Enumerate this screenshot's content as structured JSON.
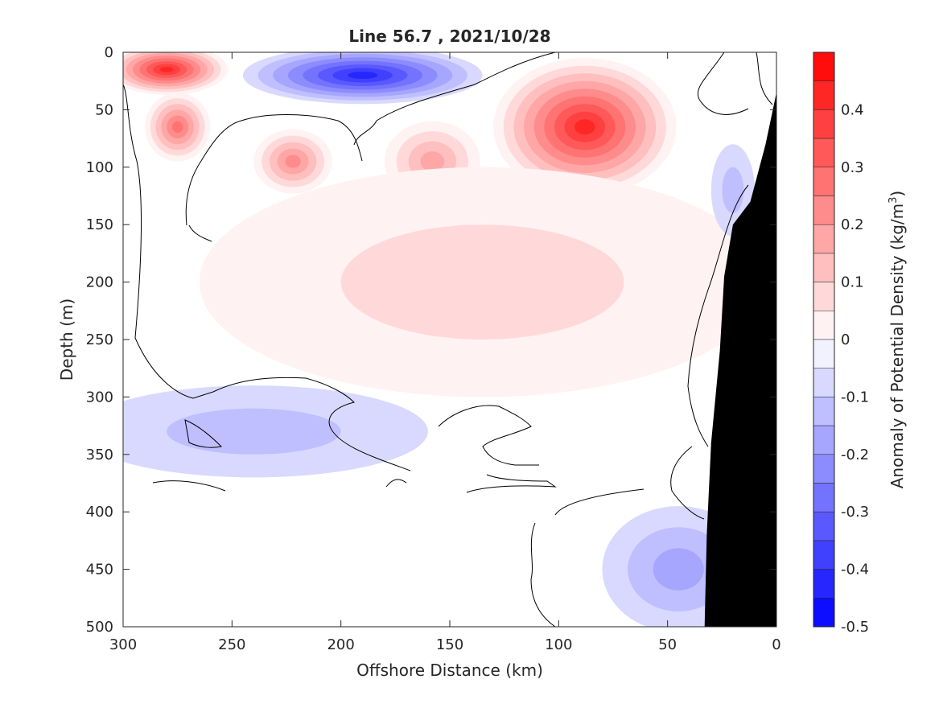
{
  "chart_data": {
    "type": "heatmap",
    "title": "Line 56.7 , 2021/10/28",
    "xlabel": "Offshore Distance (km)",
    "ylabel": "Depth (m)",
    "xlim": [
      300,
      0
    ],
    "ylim": [
      0,
      500
    ],
    "x_axis_reversed": true,
    "y_axis_reversed": true,
    "xticks": [
      300,
      250,
      200,
      150,
      100,
      50,
      0
    ],
    "yticks": [
      0,
      50,
      100,
      150,
      200,
      250,
      300,
      350,
      400,
      450,
      500
    ],
    "colorbar": {
      "label": "Anomaly of Potential Density (kg/m",
      "label_superscript": "3",
      "label_close": ")",
      "range": [
        -0.5,
        0.5
      ],
      "step": 0.05,
      "ticks": [
        0.4,
        0.3,
        0.2,
        0.1,
        0,
        -0.1,
        -0.2,
        -0.3,
        -0.4,
        -0.5
      ],
      "tick_labels": [
        "0.4",
        "0.3",
        "0.2",
        "0.1",
        "0",
        "-0.1",
        "-0.2",
        "-0.3",
        "-0.4",
        "-0.5"
      ],
      "positive_color": "#ff0000",
      "negative_color": "#0000ff",
      "neutral_color": "#ffffff"
    },
    "data_max_depth_offshore": 390,
    "features": [
      {
        "name": "surface-high-west",
        "x": 280,
        "depth": 15,
        "anomaly": 0.45,
        "rx": 28,
        "ry": 22
      },
      {
        "name": "subsurface-high-west",
        "x": 275,
        "depth": 65,
        "anomaly": 0.3,
        "rx": 15,
        "ry": 30
      },
      {
        "name": "high-225",
        "x": 222,
        "depth": 95,
        "anomaly": 0.25,
        "rx": 18,
        "ry": 28
      },
      {
        "name": "high-160",
        "x": 158,
        "depth": 95,
        "anomaly": 0.2,
        "rx": 22,
        "ry": 35
      },
      {
        "name": "surface-core-east",
        "x": 88,
        "depth": 65,
        "anomaly": 0.45,
        "rx": 42,
        "ry": 60
      },
      {
        "name": "broad-positive",
        "x": 135,
        "depth": 200,
        "anomaly": 0.1,
        "rx": 130,
        "ry": 100
      },
      {
        "name": "surface-low",
        "x": 190,
        "depth": 20,
        "anomaly": -0.4,
        "rx": 55,
        "ry": 25
      },
      {
        "name": "low-deep-west",
        "x": 240,
        "depth": 330,
        "anomaly": -0.1,
        "rx": 80,
        "ry": 40
      },
      {
        "name": "low-deep-east",
        "x": 45,
        "depth": 450,
        "anomaly": -0.15,
        "rx": 35,
        "ry": 55
      },
      {
        "name": "low-coast",
        "x": 20,
        "depth": 120,
        "anomaly": -0.1,
        "rx": 10,
        "ry": 40
      }
    ],
    "bathymetry_fill": "#000000"
  }
}
